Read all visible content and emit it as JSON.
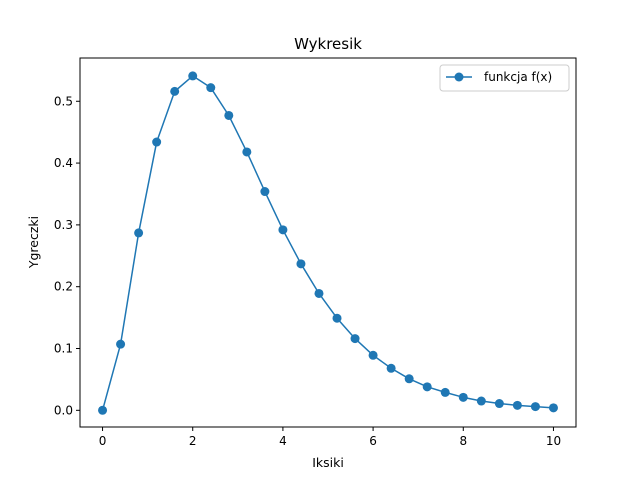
{
  "chart_data": {
    "type": "line",
    "title": "Wykresik",
    "xlabel": "Iksiki",
    "ylabel": "Ygreczki",
    "xlim": [
      -0.5,
      10.5
    ],
    "ylim": [
      -0.027,
      0.57
    ],
    "xticks": [
      0,
      2,
      4,
      6,
      8,
      10
    ],
    "xtick_labels": [
      "0",
      "2",
      "4",
      "6",
      "8",
      "10"
    ],
    "yticks": [
      0.0,
      0.1,
      0.2,
      0.3,
      0.4,
      0.5
    ],
    "ytick_labels": [
      "0.0",
      "0.1",
      "0.2",
      "0.3",
      "0.4",
      "0.5"
    ],
    "grid": false,
    "legend": "top-right",
    "series": [
      {
        "name": "funkcja f(x)",
        "color": "#1f77b4",
        "marker": "circle",
        "x": [
          0,
          0.4,
          0.8,
          1.2,
          1.6,
          2.0,
          2.4,
          2.8,
          3.2,
          3.6,
          4.0,
          4.4,
          4.8,
          5.2,
          5.6,
          6.0,
          6.4,
          6.8,
          7.2,
          7.6,
          8.0,
          8.4,
          8.8,
          9.2,
          9.6,
          10.0
        ],
        "y": [
          0.0,
          0.107,
          0.287,
          0.434,
          0.516,
          0.541,
          0.522,
          0.477,
          0.418,
          0.354,
          0.292,
          0.237,
          0.189,
          0.149,
          0.116,
          0.089,
          0.068,
          0.051,
          0.038,
          0.029,
          0.021,
          0.015,
          0.011,
          0.008,
          0.006,
          0.004
        ]
      }
    ]
  }
}
